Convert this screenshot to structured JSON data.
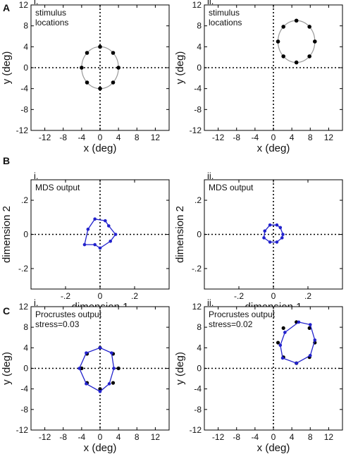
{
  "figure": {
    "row_letters": [
      "A",
      "B",
      "C"
    ]
  },
  "chart_data": [
    {
      "type": "scatter",
      "panel": "A.i",
      "roman": "i.",
      "annotation_lines": [
        "stimulus",
        "locations"
      ],
      "xlabel": "x (deg)",
      "ylabel": "y (deg)",
      "xlim": [
        -15,
        15
      ],
      "ylim": [
        -12,
        12
      ],
      "xticks": [
        -12,
        -8,
        -4,
        0,
        4,
        8,
        12
      ],
      "yticks": [
        -12,
        -8,
        -4,
        0,
        4,
        8,
        12
      ],
      "grid": false,
      "reference_lines": {
        "x": 0,
        "y": 0,
        "style": "dotted"
      },
      "circle": {
        "cx": 0,
        "cy": 0,
        "r": 4,
        "color": "#999999"
      },
      "series": [
        {
          "color": "#000000",
          "points": [
            [
              4,
              0
            ],
            [
              2.83,
              2.83
            ],
            [
              0,
              4
            ],
            [
              -2.83,
              2.83
            ],
            [
              -4,
              0
            ],
            [
              -2.83,
              -2.83
            ],
            [
              0,
              -4
            ],
            [
              2.83,
              -2.83
            ]
          ]
        }
      ]
    },
    {
      "type": "scatter",
      "panel": "A.ii",
      "roman": "ii.",
      "annotation_lines": [
        "stimulus",
        "locations"
      ],
      "xlabel": "x (deg)",
      "ylabel": "y (deg)",
      "xlim": [
        -15,
        15
      ],
      "ylim": [
        -12,
        12
      ],
      "xticks": [
        -12,
        -8,
        -4,
        0,
        4,
        8,
        12
      ],
      "yticks": [
        -12,
        -8,
        -4,
        0,
        4,
        8,
        12
      ],
      "grid": false,
      "reference_lines": {
        "x": 0,
        "y": 0,
        "style": "dotted"
      },
      "circle": {
        "cx": 5,
        "cy": 5,
        "r": 4,
        "color": "#999999"
      },
      "series": [
        {
          "color": "#000000",
          "points": [
            [
              9,
              5
            ],
            [
              7.83,
              7.83
            ],
            [
              5,
              9
            ],
            [
              2.17,
              7.83
            ],
            [
              1,
              5
            ],
            [
              2.17,
              2.17
            ],
            [
              5,
              1
            ],
            [
              7.83,
              2.17
            ]
          ]
        }
      ]
    },
    {
      "type": "line",
      "panel": "B.i",
      "roman": "i.",
      "annotation_lines": [
        "MDS output"
      ],
      "xlabel": "dimension 1",
      "ylabel": "dimension 2",
      "xlim": [
        -0.4,
        0.4
      ],
      "ylim": [
        -0.32,
        0.32
      ],
      "xticks": [
        -0.2,
        0,
        0.2
      ],
      "yticks": [
        -0.2,
        0,
        0.2
      ],
      "grid": false,
      "reference_lines": {
        "x": 0,
        "y": 0,
        "style": "dotted"
      },
      "series": [
        {
          "color": "#2222cc",
          "closed": true,
          "points": [
            [
              0.09,
              0
            ],
            [
              0.05,
              0.05
            ],
            [
              0.03,
              0.08
            ],
            [
              -0.03,
              0.09
            ],
            [
              -0.07,
              0.03
            ],
            [
              -0.09,
              -0.06
            ],
            [
              -0.03,
              -0.06
            ],
            [
              0,
              -0.08
            ],
            [
              0.06,
              -0.04
            ]
          ]
        }
      ]
    },
    {
      "type": "line",
      "panel": "B.ii",
      "roman": "ii.",
      "annotation_lines": [
        "MDS output"
      ],
      "xlabel": "dimension 1",
      "ylabel": "dimension 2",
      "xlim": [
        -0.4,
        0.4
      ],
      "ylim": [
        -0.32,
        0.32
      ],
      "xticks": [
        -0.2,
        0,
        0.2
      ],
      "yticks": [
        -0.2,
        0,
        0.2
      ],
      "grid": false,
      "reference_lines": {
        "x": 0,
        "y": 0,
        "style": "dotted"
      },
      "series": [
        {
          "color": "#2222cc",
          "closed": true,
          "points": [
            [
              0.055,
              0
            ],
            [
              0.04,
              0.04
            ],
            [
              0.02,
              0.055
            ],
            [
              -0.02,
              0.055
            ],
            [
              -0.05,
              0.02
            ],
            [
              -0.055,
              -0.02
            ],
            [
              -0.02,
              -0.045
            ],
            [
              0.02,
              -0.045
            ],
            [
              0.05,
              -0.02
            ]
          ]
        }
      ]
    },
    {
      "type": "line",
      "panel": "C.i",
      "roman": "i.",
      "annotation_lines": [
        "Procrustes output",
        "stress=0.03"
      ],
      "xlabel": "x (deg)",
      "ylabel": "y (deg)",
      "xlim": [
        -15,
        15
      ],
      "ylim": [
        -12,
        12
      ],
      "xticks": [
        -12,
        -8,
        -4,
        0,
        4,
        8,
        12
      ],
      "yticks": [
        -12,
        -8,
        -4,
        0,
        4,
        8,
        12
      ],
      "grid": false,
      "reference_lines": {
        "x": 0,
        "y": 0,
        "style": "dotted"
      },
      "reference_points": {
        "color": "#000000",
        "points": [
          [
            4,
            0
          ],
          [
            2.83,
            2.83
          ],
          [
            0,
            4
          ],
          [
            -2.83,
            2.83
          ],
          [
            -4,
            0
          ],
          [
            -2.83,
            -2.83
          ],
          [
            0,
            -4
          ],
          [
            2.83,
            -2.83
          ]
        ]
      },
      "series": [
        {
          "color": "#2222cc",
          "closed": true,
          "points": [
            [
              3,
              0
            ],
            [
              2.5,
              3
            ],
            [
              0,
              4
            ],
            [
              -3,
              3
            ],
            [
              -4.5,
              0
            ],
            [
              -3,
              -3
            ],
            [
              0,
              -4.5
            ],
            [
              2,
              -3
            ]
          ]
        }
      ]
    },
    {
      "type": "line",
      "panel": "C.ii",
      "roman": "ii.",
      "annotation_lines": [
        "Procrustes output",
        "stress=0.02"
      ],
      "xlabel": "x (deg)",
      "ylabel": "y (deg)",
      "xlim": [
        -15,
        15
      ],
      "ylim": [
        -12,
        12
      ],
      "xticks": [
        -12,
        -8,
        -4,
        0,
        4,
        8,
        12
      ],
      "yticks": [
        -12,
        -8,
        -4,
        0,
        4,
        8,
        12
      ],
      "grid": false,
      "reference_lines": {
        "x": 0,
        "y": 0,
        "style": "dotted"
      },
      "reference_points": {
        "color": "#000000",
        "points": [
          [
            9,
            5
          ],
          [
            7.83,
            7.83
          ],
          [
            5,
            9
          ],
          [
            2.17,
            7.83
          ],
          [
            1,
            5
          ],
          [
            2.17,
            2.17
          ],
          [
            5,
            1
          ],
          [
            7.83,
            2.17
          ]
        ]
      },
      "series": [
        {
          "color": "#2222cc",
          "closed": true,
          "points": [
            [
              9,
              5.5
            ],
            [
              8,
              8.5
            ],
            [
              5.5,
              9
            ],
            [
              2.5,
              7
            ],
            [
              1.5,
              4.5
            ],
            [
              2,
              2
            ],
            [
              5,
              1
            ],
            [
              8,
              2.5
            ]
          ]
        }
      ]
    }
  ]
}
